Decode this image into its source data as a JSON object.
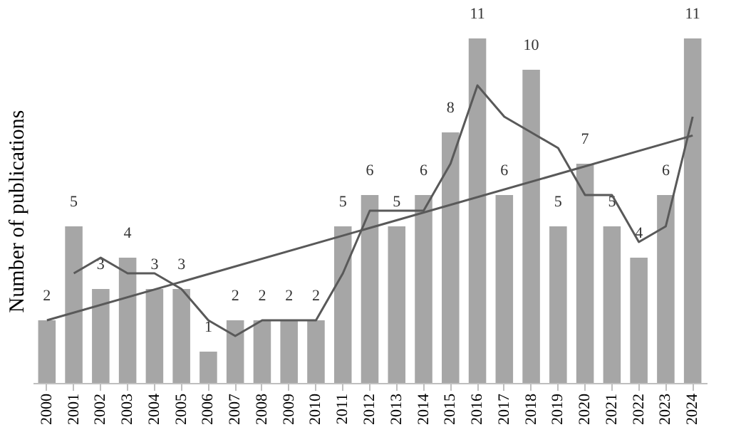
{
  "chart_data": {
    "type": "bar",
    "ylabel": "Number of publications",
    "categories": [
      "2000",
      "2001",
      "2002",
      "2003",
      "2004",
      "2005",
      "2006",
      "2007",
      "2008",
      "2009",
      "2010",
      "2011",
      "2012",
      "2013",
      "2014",
      "2015",
      "2016",
      "2017",
      "2018",
      "2019",
      "2020",
      "2021",
      "2022",
      "2023",
      "2024"
    ],
    "series": [
      {
        "color": "#a6a6a6",
        "values": [
          2,
          5,
          3,
          4,
          3,
          3,
          1,
          2,
          2,
          2,
          2,
          5,
          6,
          5,
          6,
          8,
          11,
          6,
          10,
          5,
          7,
          5,
          4,
          6,
          11
        ],
        "value_labels": [
          "2",
          "5",
          "3",
          "4",
          "3",
          "3",
          "1",
          "2",
          "2",
          "2",
          "2",
          "5",
          "6",
          "5",
          "6",
          "8",
          "11",
          "6",
          "10",
          "5",
          "7",
          "5",
          "4",
          "6",
          "11"
        ]
      },
      {
        "type": "line",
        "color": "#595959",
        "values": [
          null,
          3.5,
          4,
          3.5,
          3.5,
          3,
          2,
          1.5,
          2,
          2,
          2,
          3.5,
          5.5,
          5.5,
          5.5,
          7,
          9.5,
          8.5,
          8,
          7.5,
          6,
          6,
          4.5,
          5,
          8.5
        ]
      },
      {
        "type": "line",
        "color": "#595959",
        "values": [
          2.0,
          null,
          null,
          null,
          null,
          null,
          null,
          null,
          null,
          null,
          null,
          null,
          null,
          null,
          null,
          null,
          null,
          null,
          null,
          null,
          null,
          null,
          null,
          null,
          7.9
        ]
      }
    ],
    "tick_labels": "x",
    "grid": false
  }
}
